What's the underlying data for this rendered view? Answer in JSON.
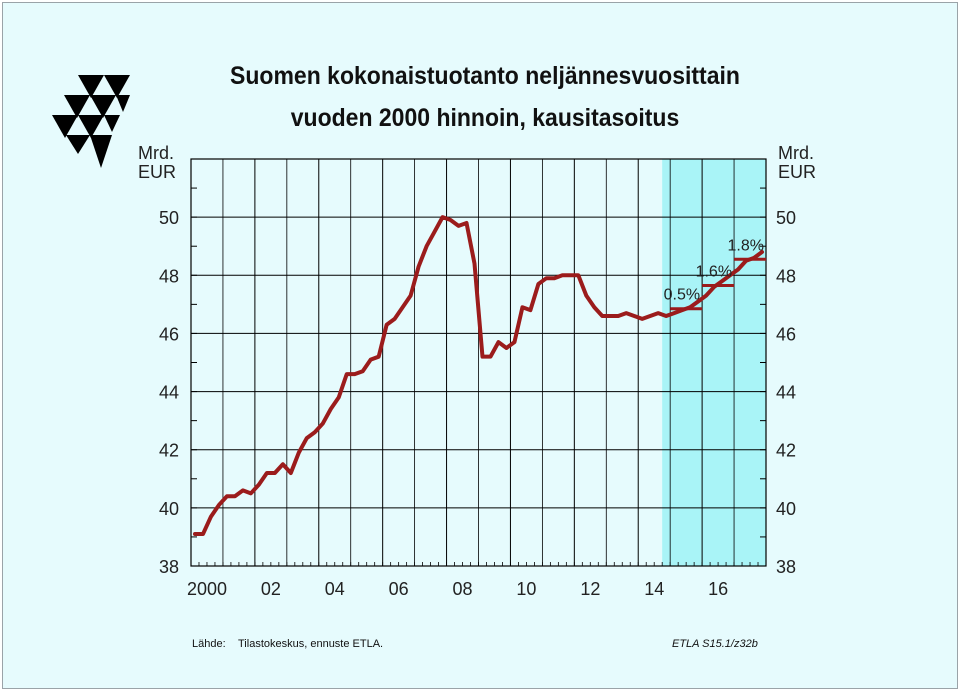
{
  "title_line1": "Suomen kokonaistuotanto neljännesvuosittain",
  "title_line2": "vuoden 2000 hinnoin, kausitasoitus",
  "unit_left": "Mrd.\nEUR",
  "unit_right": "Mrd.\nEUR",
  "source_label": "Lähde:",
  "source_text": "Tilastokeskus, ennuste ETLA.",
  "figure_code": "ETLA S15.1/z32b",
  "colors": {
    "background": "#e6fbfd",
    "forecast_band": "#a9f4f7",
    "line": "#9b1c1c",
    "grid": "#000000"
  },
  "chart_data": {
    "type": "line",
    "x_tick_labels": [
      "2000",
      "02",
      "04",
      "06",
      "08",
      "10",
      "12",
      "14",
      "16"
    ],
    "y_ticks": [
      38,
      40,
      42,
      44,
      46,
      48,
      50
    ],
    "ylim": [
      38,
      52
    ],
    "xlim": [
      2000,
      2018
    ],
    "forecast_start": 2014.75,
    "grid": true,
    "series": [
      {
        "x": [
          2000.0,
          2000.25,
          2000.5,
          2000.75,
          2001.0,
          2001.25,
          2001.5,
          2001.75,
          2002.0,
          2002.25,
          2002.5,
          2002.75,
          2003.0,
          2003.25,
          2003.5,
          2003.75,
          2004.0,
          2004.25,
          2004.5,
          2004.75,
          2005.0,
          2005.25,
          2005.5,
          2005.75,
          2006.0,
          2006.25,
          2006.5,
          2006.75,
          2007.0,
          2007.25,
          2007.5,
          2007.75,
          2008.0,
          2008.25,
          2008.5,
          2008.75,
          2009.0,
          2009.25,
          2009.5,
          2009.75,
          2010.0,
          2010.25,
          2010.5,
          2010.75,
          2011.0,
          2011.25,
          2011.5,
          2011.75,
          2012.0,
          2012.25,
          2012.5,
          2012.75,
          2013.0,
          2013.25,
          2013.5,
          2013.75,
          2014.0,
          2014.25,
          2014.5,
          2014.75,
          2015.0,
          2015.25,
          2015.5,
          2015.75,
          2016.0,
          2016.25,
          2016.5,
          2016.75,
          2017.0,
          2017.25,
          2017.5,
          2017.75
        ],
        "values": [
          39.1,
          39.1,
          39.7,
          40.1,
          40.4,
          40.4,
          40.6,
          40.5,
          40.8,
          41.2,
          41.2,
          41.5,
          41.2,
          41.9,
          42.4,
          42.6,
          42.9,
          43.4,
          43.8,
          44.6,
          44.6,
          44.7,
          45.1,
          45.2,
          46.3,
          46.5,
          46.9,
          47.3,
          48.3,
          49.0,
          49.5,
          50.0,
          49.9,
          49.7,
          49.8,
          48.4,
          45.2,
          45.2,
          45.7,
          45.5,
          45.7,
          46.9,
          46.8,
          47.7,
          47.9,
          47.9,
          48.0,
          48.0,
          48.0,
          47.3,
          46.9,
          46.6,
          46.6,
          46.6,
          46.7,
          46.6,
          46.5,
          46.6,
          46.7,
          46.6,
          46.7,
          46.8,
          46.9,
          47.1,
          47.3,
          47.6,
          47.8,
          48.0,
          48.2,
          48.5,
          48.6,
          48.8
        ]
      }
    ],
    "annual_averages": [
      {
        "label": "0.5%",
        "year": 2015,
        "value": 46.85
      },
      {
        "label": "1.6%",
        "year": 2016,
        "value": 47.65
      },
      {
        "label": "1.8%",
        "year": 2017,
        "value": 48.55
      }
    ]
  }
}
